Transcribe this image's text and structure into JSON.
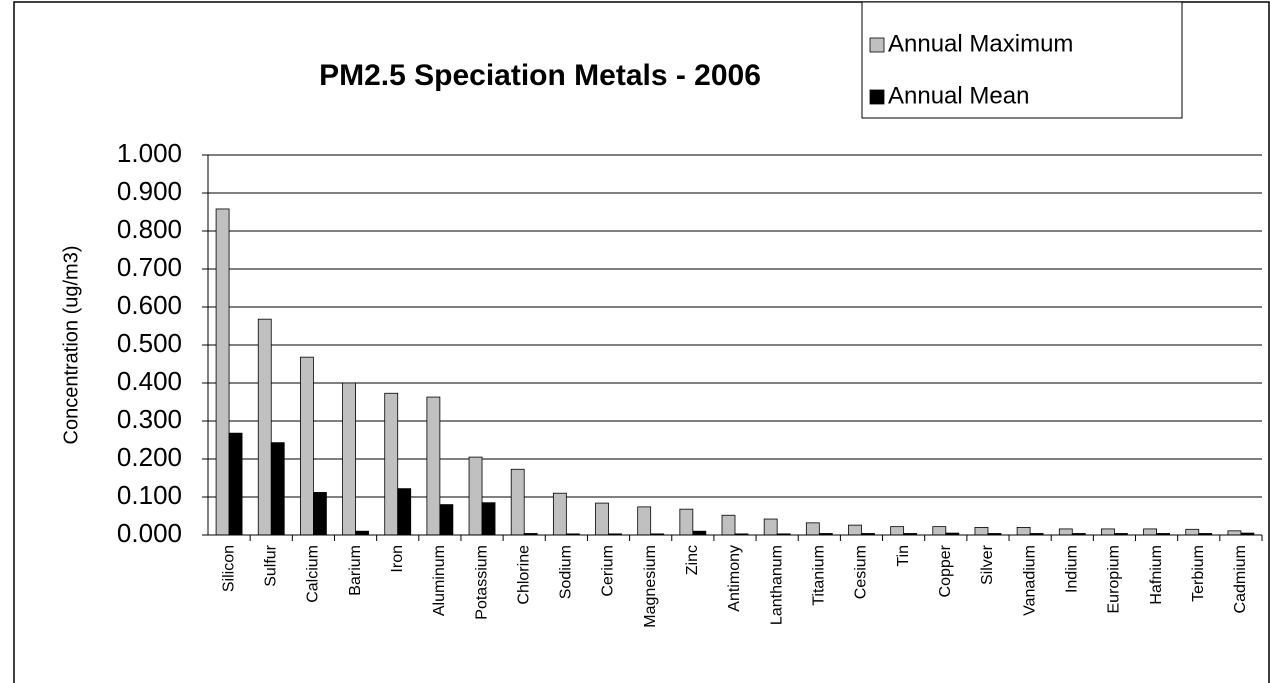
{
  "chart_data": {
    "type": "bar",
    "title": "PM2.5 Speciation Metals - 2006",
    "y_label": "Concentration (ug/m3)",
    "categories": [
      "Silicon",
      "Sulfur",
      "Calcium",
      "Barium",
      "Iron",
      "Aluminum",
      "Potassium",
      "Chlorine",
      "Sodium",
      "Cerium",
      "Magnesium",
      "Zinc",
      "Antimony",
      "Lanthanum",
      "Titanium",
      "Cesium",
      "Tin",
      "Copper",
      "Silver",
      "Vanadium",
      "Indium",
      "Europium",
      "Hafnium",
      "Terbium",
      "Cadmium"
    ],
    "series": [
      {
        "name": "Annual Maximum",
        "color": "#c0c0c0",
        "values": [
          0.858,
          0.568,
          0.468,
          0.4,
          0.373,
          0.363,
          0.205,
          0.173,
          0.11,
          0.084,
          0.074,
          0.068,
          0.052,
          0.042,
          0.032,
          0.026,
          0.022,
          0.022,
          0.02,
          0.02,
          0.016,
          0.016,
          0.016,
          0.015,
          0.011
        ]
      },
      {
        "name": "Annual Mean",
        "color": "#000000",
        "values": [
          0.268,
          0.243,
          0.112,
          0.01,
          0.122,
          0.08,
          0.085,
          0.004,
          0.003,
          0.003,
          0.003,
          0.01,
          0.003,
          0.003,
          0.004,
          0.004,
          0.004,
          0.005,
          0.004,
          0.004,
          0.004,
          0.004,
          0.004,
          0.004,
          0.005
        ]
      }
    ],
    "ylim": [
      0,
      1
    ],
    "yticks": [
      {
        "value": 0,
        "label": "0.000"
      },
      {
        "value": 0.1,
        "label": "0.100"
      },
      {
        "value": 0.2,
        "label": "0.200"
      },
      {
        "value": 0.3,
        "label": "0.300"
      },
      {
        "value": 0.4,
        "label": "0.400"
      },
      {
        "value": 0.5,
        "label": "0.500"
      },
      {
        "value": 0.6,
        "label": "0.600"
      },
      {
        "value": 0.7,
        "label": "0.700"
      },
      {
        "value": 0.8,
        "label": "0.800"
      },
      {
        "value": 0.9,
        "label": "0.900"
      },
      {
        "value": 1,
        "label": "1.000"
      }
    ],
    "grid": true,
    "legend": "top-right"
  }
}
